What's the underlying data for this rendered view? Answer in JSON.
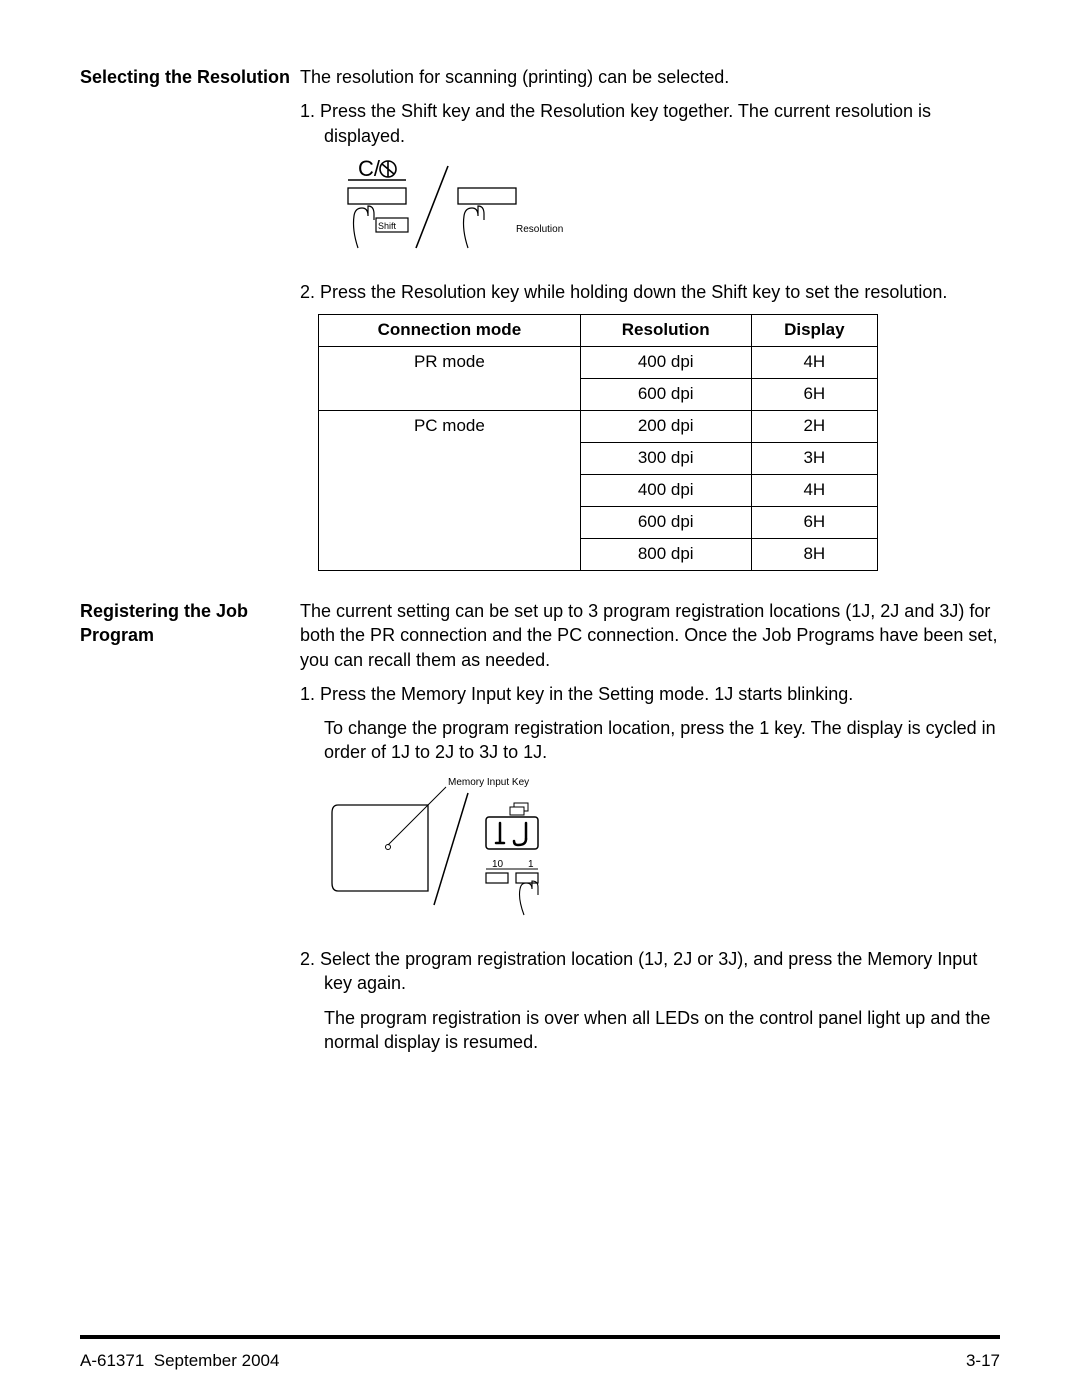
{
  "section1": {
    "heading": "Selecting the Resolution",
    "intro": "The resolution for scanning (printing) can be selected.",
    "step1": "1.  Press the Shift key and the Resolution key together. The current resolution is displayed.",
    "step2": "2.  Press the Resolution key while holding down the Shift key to set the resolution.",
    "diagram1": {
      "label_top": "C/",
      "key_shift": "Shift",
      "key_resolution": "Resolution"
    },
    "table": {
      "headers": [
        "Connection mode",
        "Resolution",
        "Display"
      ],
      "rows": [
        {
          "mode": "PR mode",
          "rowspan": 2,
          "res": "400 dpi",
          "disp": "4H"
        },
        {
          "res": "600 dpi",
          "disp": "6H"
        },
        {
          "mode": "PC mode",
          "rowspan": 5,
          "res": "200 dpi",
          "disp": "2H"
        },
        {
          "res": "300 dpi",
          "disp": "3H"
        },
        {
          "res": "400 dpi",
          "disp": "4H"
        },
        {
          "res": "600 dpi",
          "disp": "6H"
        },
        {
          "res": "800 dpi",
          "disp": "8H"
        }
      ]
    }
  },
  "section2": {
    "heading": "Registering the Job Program",
    "intro": "The current setting can be set up to 3 program registration locations (1J, 2J and 3J) for both the PR connection and the PC connection. Once the Job Programs have been set, you can recall them as needed.",
    "step1": "1.  Press the Memory Input key in the Setting mode. 1J starts blinking.",
    "step1b": "To change the program registration location, press the 1 key. The display is cycled in order of 1J to 2J to 3J to 1J.",
    "step2": "2.  Select the program registration location (1J, 2J or 3J), and press the Memory Input key again.",
    "step2b": "The program registration is over when all LEDs on the control panel light up and the normal display is resumed.",
    "diagram2": {
      "label_mem": "Memory Input Key",
      "seg_display": "1J",
      "key10": "10",
      "key1": "1"
    }
  },
  "footer": {
    "doc_id": "A-61371",
    "date": "September 2004",
    "page": "3-17"
  }
}
